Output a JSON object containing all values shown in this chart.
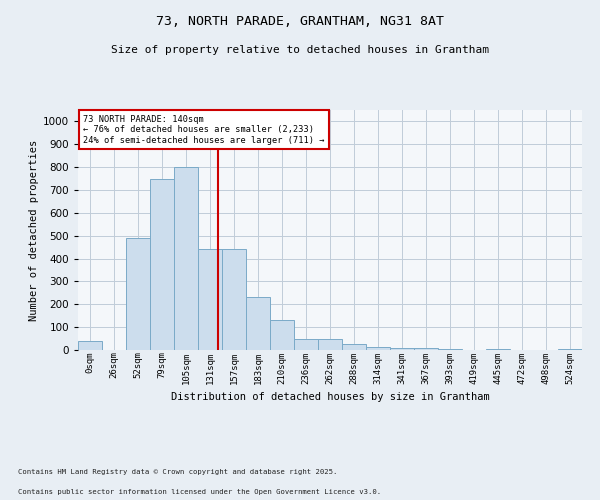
{
  "title_line1": "73, NORTH PARADE, GRANTHAM, NG31 8AT",
  "title_line2": "Size of property relative to detached houses in Grantham",
  "xlabel": "Distribution of detached houses by size in Grantham",
  "ylabel": "Number of detached properties",
  "bin_labels": [
    "0sqm",
    "26sqm",
    "52sqm",
    "79sqm",
    "105sqm",
    "131sqm",
    "157sqm",
    "183sqm",
    "210sqm",
    "236sqm",
    "262sqm",
    "288sqm",
    "314sqm",
    "341sqm",
    "367sqm",
    "393sqm",
    "419sqm",
    "445sqm",
    "472sqm",
    "498sqm",
    "524sqm"
  ],
  "bar_heights": [
    40,
    0,
    490,
    750,
    800,
    440,
    440,
    230,
    130,
    50,
    50,
    25,
    15,
    10,
    10,
    5,
    0,
    5,
    0,
    0,
    5
  ],
  "bar_color": "#ccdded",
  "bar_edge_color": "#7aaac8",
  "ylim": [
    0,
    1050
  ],
  "yticks": [
    0,
    100,
    200,
    300,
    400,
    500,
    600,
    700,
    800,
    900,
    1000
  ],
  "property_size": 140,
  "vline_color": "#cc0000",
  "annotation_box_color": "#cc0000",
  "annotation_text_line1": "73 NORTH PARADE: 140sqm",
  "annotation_text_line2": "← 76% of detached houses are smaller (2,233)",
  "annotation_text_line3": "24% of semi-detached houses are larger (711) →",
  "footnote1": "Contains HM Land Registry data © Crown copyright and database right 2025.",
  "footnote2": "Contains public sector information licensed under the Open Government Licence v3.0.",
  "bg_color": "#e8eef4",
  "plot_bg_color": "#f4f7fa",
  "grid_color": "#c0ccd8"
}
